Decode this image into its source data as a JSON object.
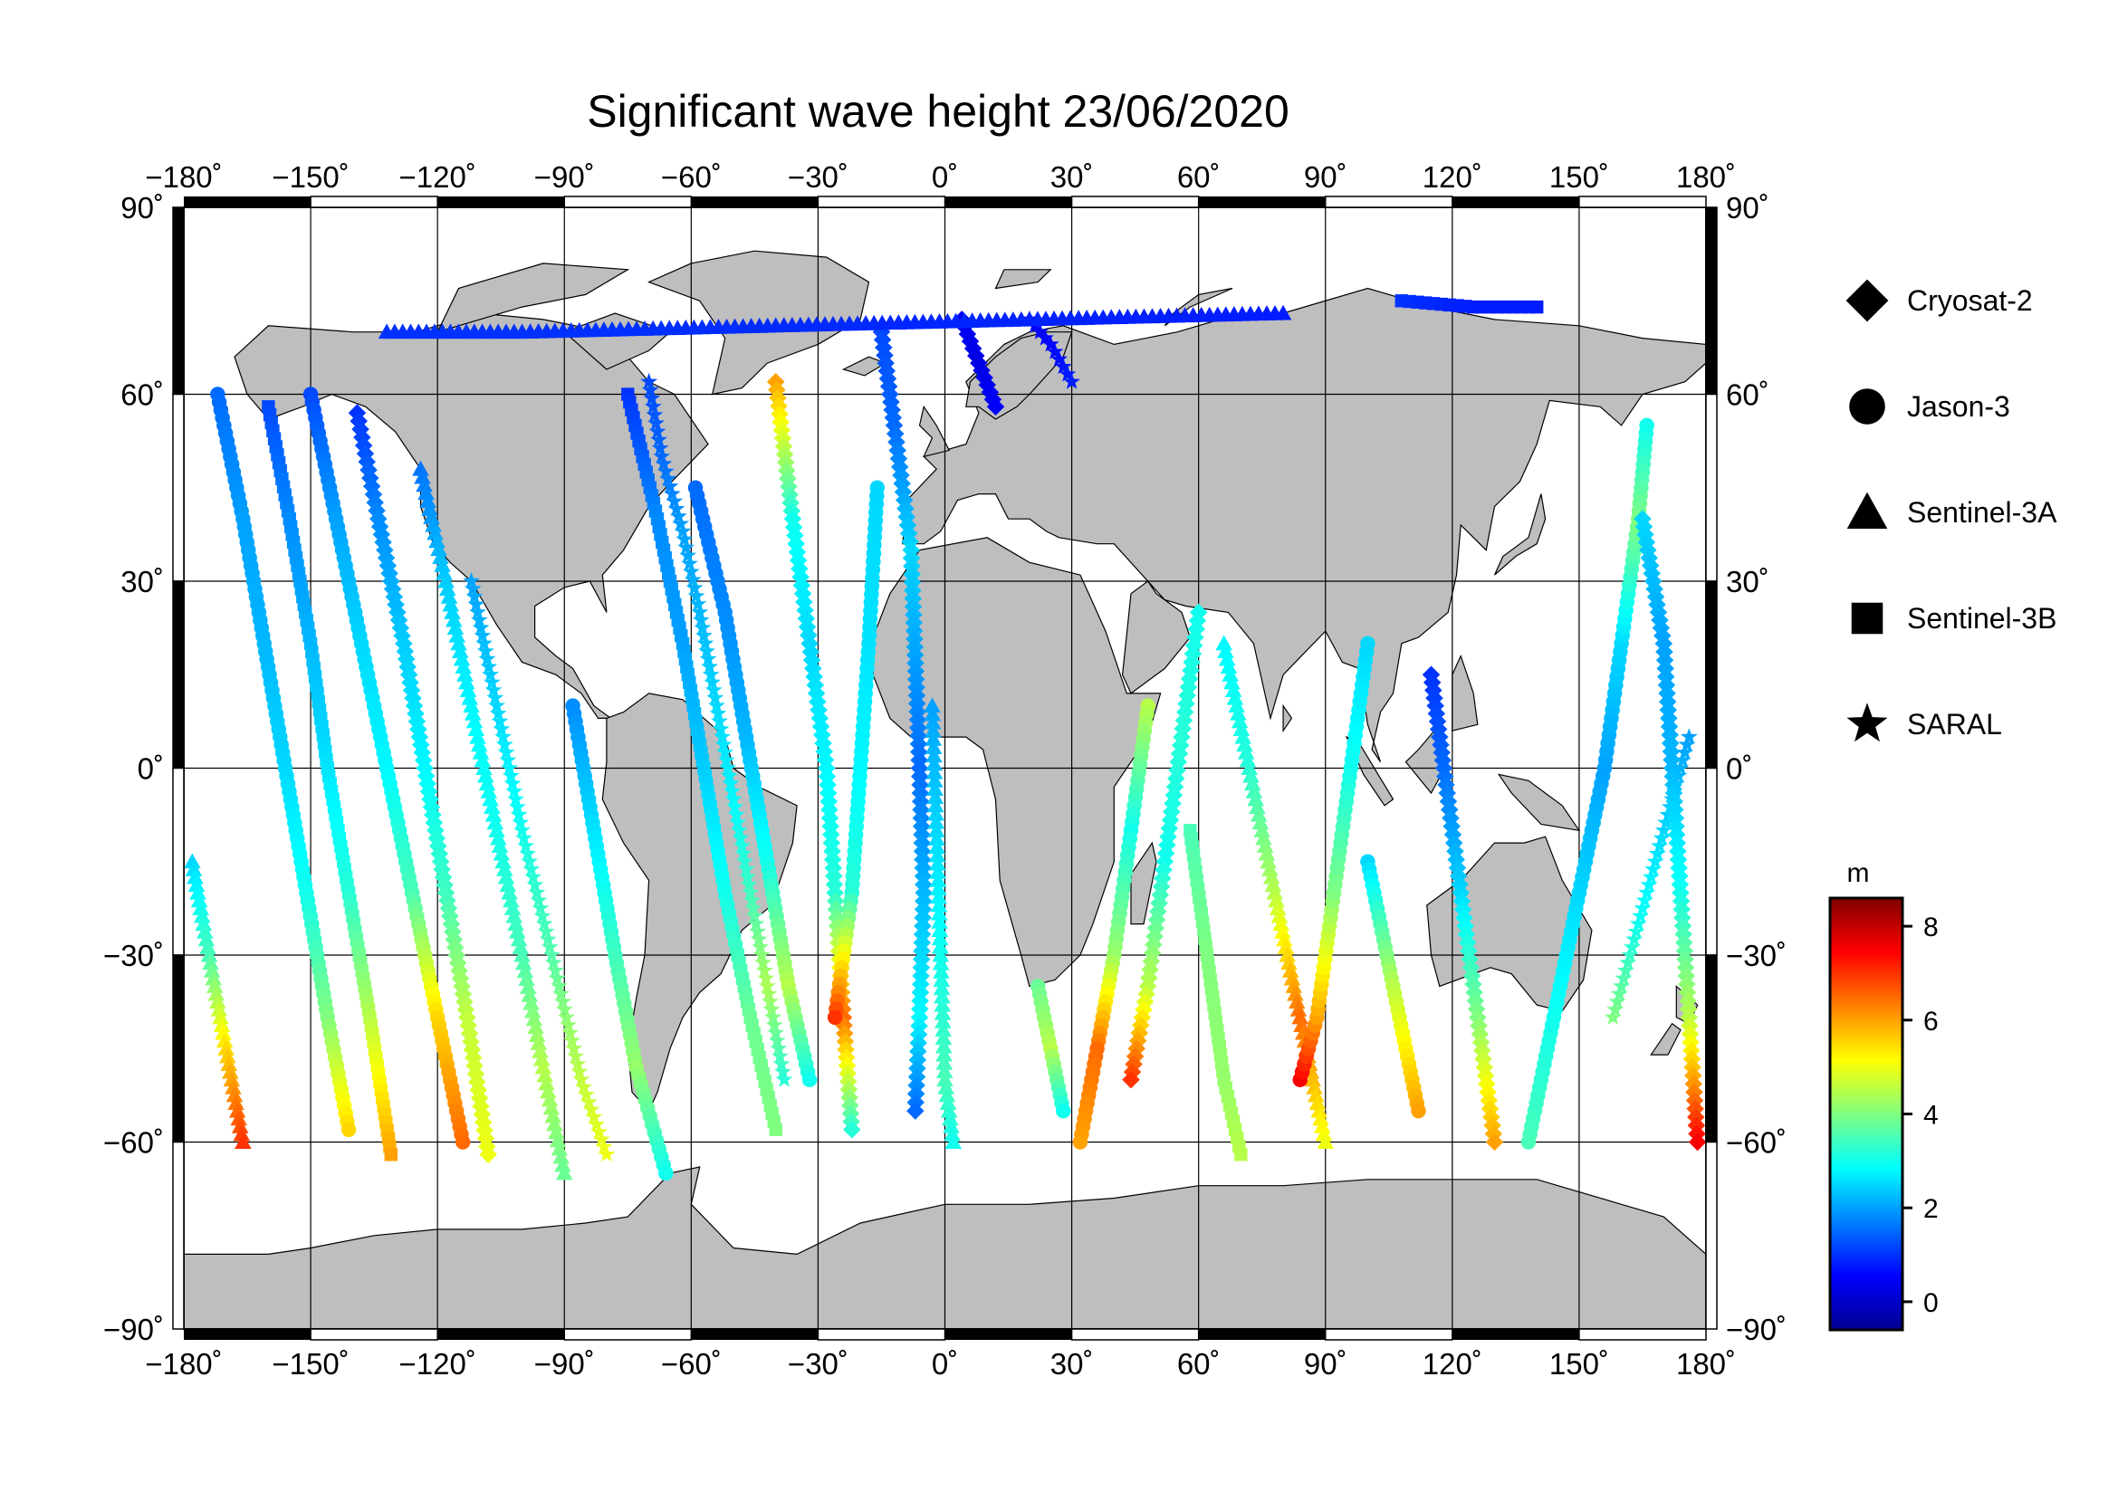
{
  "title": "Significant wave height 23/06/2020",
  "map": {
    "lon_range": [
      -180,
      180
    ],
    "lat_range": [
      -90,
      90
    ],
    "lon_ticks": [
      "−180˚",
      "−150˚",
      "−120˚",
      "−90˚",
      "−60˚",
      "−30˚",
      "0˚",
      "30˚",
      "60˚",
      "90˚",
      "120˚",
      "150˚",
      "180˚"
    ],
    "lat_ticks": [
      "90˚",
      "60˚",
      "30˚",
      "0˚",
      "−30˚",
      "−60˚",
      "−90˚"
    ],
    "grid": true,
    "land_color": "#bebebe",
    "ocean_color": "#ffffff"
  },
  "legend": {
    "placement": "right",
    "items": [
      {
        "label": "Cryosat-2",
        "marker": "diamond"
      },
      {
        "label": "Jason-3",
        "marker": "circle"
      },
      {
        "label": "Sentinel-3A",
        "marker": "triangle"
      },
      {
        "label": "Sentinel-3B",
        "marker": "square"
      },
      {
        "label": "SARAL",
        "marker": "star"
      }
    ]
  },
  "colorbar": {
    "unit": "m",
    "range": [
      -0.6,
      8.6
    ],
    "ticks": [
      "8",
      "6",
      "4",
      "2",
      "0"
    ],
    "colormap": "jet"
  },
  "chart_data": {
    "type": "scatter",
    "title": "Significant wave height 23/06/2020",
    "x_axis": "longitude",
    "y_axis": "latitude",
    "xlim": [
      -180,
      180
    ],
    "ylim": [
      -90,
      90
    ],
    "value_unit": "m",
    "tracks": [
      {
        "series": "Sentinel-3A",
        "points": [
          [
            -178,
            -15,
            2.5
          ],
          [
            -174,
            -30,
            3.5
          ],
          [
            -170,
            -45,
            5.5
          ],
          [
            -166,
            -60,
            7
          ]
        ]
      },
      {
        "series": "Jason-3",
        "points": [
          [
            -172,
            60,
            1.5
          ],
          [
            -166,
            40,
            2
          ],
          [
            -161,
            20,
            2.2
          ],
          [
            -156,
            0,
            2.5
          ],
          [
            -151,
            -20,
            3
          ],
          [
            -146,
            -40,
            4
          ],
          [
            -141,
            -58,
            5.5
          ]
        ]
      },
      {
        "series": "Sentinel-3B",
        "points": [
          [
            -160,
            58,
            1.2
          ],
          [
            -155,
            40,
            1.8
          ],
          [
            -150,
            20,
            2.2
          ],
          [
            -146,
            0,
            2.6
          ],
          [
            -141,
            -20,
            3.2
          ],
          [
            -136,
            -40,
            4.5
          ],
          [
            -131,
            -62,
            6
          ]
        ]
      },
      {
        "series": "Jason-3",
        "points": [
          [
            -150,
            60,
            1.2
          ],
          [
            -144,
            40,
            2
          ],
          [
            -138,
            20,
            2.5
          ],
          [
            -132,
            0,
            2.8
          ],
          [
            -126,
            -20,
            3.5
          ],
          [
            -120,
            -40,
            5.5
          ],
          [
            -114,
            -60,
            6.5
          ]
        ]
      },
      {
        "series": "Cryosat-2",
        "points": [
          [
            -139,
            57,
            1
          ],
          [
            -134,
            40,
            1.8
          ],
          [
            -128,
            20,
            2.4
          ],
          [
            -123,
            0,
            2.8
          ],
          [
            -118,
            -20,
            3.4
          ],
          [
            -113,
            -40,
            4.6
          ],
          [
            -108,
            -62,
            5
          ]
        ]
      },
      {
        "series": "Sentinel-3A",
        "points": [
          [
            -124,
            48,
            1.6
          ],
          [
            -118,
            30,
            2.4
          ],
          [
            -112,
            10,
            2.8
          ],
          [
            -106,
            -10,
            3
          ],
          [
            -100,
            -30,
            3.5
          ],
          [
            -95,
            -48,
            4.5
          ],
          [
            -90,
            -65,
            3.8
          ]
        ]
      },
      {
        "series": "SARAL",
        "points": [
          [
            -112,
            30,
            2
          ],
          [
            -106,
            10,
            2.5
          ],
          [
            -100,
            -10,
            3
          ],
          [
            -93,
            -30,
            3.6
          ],
          [
            -86,
            -50,
            4.6
          ],
          [
            -80,
            -62,
            5
          ]
        ]
      },
      {
        "series": "Jason-3",
        "points": [
          [
            -88,
            10,
            1.8
          ],
          [
            -83,
            -10,
            2.6
          ],
          [
            -78,
            -30,
            3.4
          ],
          [
            -73,
            -48,
            4.2
          ],
          [
            -66,
            -65,
            3
          ]
        ]
      },
      {
        "series": "Sentinel-3B",
        "points": [
          [
            -75,
            60,
            1
          ],
          [
            -68,
            40,
            1.8
          ],
          [
            -62,
            20,
            2
          ],
          [
            -57,
            0,
            2.4
          ],
          [
            -52,
            -20,
            3
          ],
          [
            -46,
            -40,
            3.8
          ],
          [
            -40,
            -58,
            4
          ]
        ]
      },
      {
        "series": "Jason-3",
        "points": [
          [
            -59,
            45,
            1.5
          ],
          [
            -52,
            25,
            1.8
          ],
          [
            -47,
            5,
            2.2
          ],
          [
            -42,
            -15,
            3
          ],
          [
            -37,
            -35,
            4.5
          ],
          [
            -32,
            -50,
            3
          ]
        ]
      },
      {
        "series": "Cryosat-2",
        "points": [
          [
            -40,
            62,
            6
          ],
          [
            -36,
            40,
            3
          ],
          [
            -32,
            20,
            2.5
          ],
          [
            -28,
            0,
            2.8
          ],
          [
            -26,
            -20,
            3.2
          ],
          [
            -24,
            -40,
            6.5
          ],
          [
            -22,
            -58,
            3.2
          ]
        ]
      },
      {
        "series": "Jason-3",
        "points": [
          [
            -16,
            45,
            2.5
          ],
          [
            -18,
            20,
            2.6
          ],
          [
            -20,
            0,
            2.8
          ],
          [
            -22,
            -20,
            3.2
          ],
          [
            -26,
            -40,
            7
          ]
        ]
      },
      {
        "series": "Cryosat-2",
        "points": [
          [
            -15,
            70,
            1.2
          ],
          [
            -12,
            55,
            1.5
          ],
          [
            -8,
            35,
            2.5
          ],
          [
            -6,
            0,
            1.5
          ],
          [
            -5,
            -20,
            2.2
          ],
          [
            -6,
            -40,
            2.8
          ],
          [
            -7,
            -55,
            1.5
          ]
        ]
      },
      {
        "series": "Sentinel-3A",
        "points": [
          [
            -3,
            10,
            2
          ],
          [
            -2,
            -10,
            2.5
          ],
          [
            -1,
            -30,
            3
          ],
          [
            0,
            -50,
            3.5
          ],
          [
            2,
            -60,
            3
          ]
        ]
      },
      {
        "series": "Cryosat-2",
        "points": [
          [
            4,
            72,
            0.5
          ],
          [
            8,
            65,
            0.3
          ],
          [
            12,
            58,
            0.5
          ]
        ]
      },
      {
        "series": "SARAL",
        "points": [
          [
            20,
            72,
            0.5
          ],
          [
            25,
            68,
            0.6
          ],
          [
            30,
            62,
            0.8
          ]
        ]
      },
      {
        "series": "Jason-3",
        "points": [
          [
            22,
            -35,
            3.8
          ],
          [
            25,
            -45,
            4.5
          ],
          [
            28,
            -55,
            3
          ]
        ]
      },
      {
        "series": "Jason-3",
        "points": [
          [
            48,
            10,
            4.5
          ],
          [
            44,
            -10,
            3
          ],
          [
            40,
            -30,
            4.2
          ],
          [
            36,
            -45,
            6.5
          ],
          [
            32,
            -60,
            6
          ]
        ]
      },
      {
        "series": "Cryosat-2",
        "points": [
          [
            60,
            25,
            3
          ],
          [
            56,
            5,
            3.2
          ],
          [
            52,
            -15,
            3
          ],
          [
            48,
            -35,
            4.5
          ],
          [
            44,
            -50,
            7
          ]
        ]
      },
      {
        "series": "Sentinel-3A",
        "points": [
          [
            66,
            20,
            2.8
          ],
          [
            72,
            0,
            3.2
          ],
          [
            78,
            -20,
            4.5
          ],
          [
            84,
            -40,
            6.5
          ],
          [
            90,
            -60,
            5
          ]
        ]
      },
      {
        "series": "Jason-3",
        "points": [
          [
            84,
            -50,
            7.5
          ],
          [
            88,
            -40,
            6
          ],
          [
            92,
            -20,
            4
          ],
          [
            96,
            0,
            3
          ],
          [
            100,
            20,
            2.5
          ]
        ]
      },
      {
        "series": "Sentinel-3B",
        "points": [
          [
            58,
            -10,
            3.5
          ],
          [
            62,
            -30,
            4
          ],
          [
            66,
            -50,
            4.2
          ],
          [
            70,
            -62,
            4.5
          ]
        ]
      },
      {
        "series": "Jason-3",
        "points": [
          [
            100,
            -15,
            2.5
          ],
          [
            106,
            -35,
            4.5
          ],
          [
            112,
            -55,
            6
          ]
        ]
      },
      {
        "series": "Cryosat-2",
        "points": [
          [
            115,
            15,
            1
          ],
          [
            118,
            0,
            1.5
          ],
          [
            122,
            -20,
            2.5
          ],
          [
            126,
            -40,
            4
          ],
          [
            130,
            -60,
            6
          ]
        ]
      },
      {
        "series": "Jason-3",
        "points": [
          [
            138,
            -60,
            3.5
          ],
          [
            144,
            -40,
            3
          ],
          [
            150,
            -20,
            2.5
          ],
          [
            156,
            0,
            2
          ],
          [
            160,
            20,
            2.5
          ],
          [
            164,
            40,
            4
          ],
          [
            166,
            55,
            3
          ]
        ]
      },
      {
        "series": "SARAL",
        "points": [
          [
            158,
            -40,
            4
          ],
          [
            164,
            -25,
            3
          ],
          [
            170,
            -10,
            2.5
          ],
          [
            176,
            5,
            2
          ]
        ]
      },
      {
        "series": "Cryosat-2",
        "points": [
          [
            165,
            40,
            2.5
          ],
          [
            170,
            20,
            2
          ],
          [
            172,
            0,
            2.2
          ],
          [
            174,
            -20,
            3
          ],
          [
            176,
            -40,
            4.5
          ],
          [
            178,
            -60,
            7.5
          ]
        ]
      },
      {
        "series": "Sentinel-3B",
        "points": [
          [
            108,
            75,
            1
          ],
          [
            125,
            74,
            0.8
          ],
          [
            140,
            74,
            0.8
          ]
        ]
      },
      {
        "series": "Sentinel-3A",
        "points": [
          [
            -132,
            70,
            1
          ],
          [
            -100,
            70,
            1
          ],
          [
            80,
            73,
            0.8
          ]
        ]
      },
      {
        "series": "SARAL",
        "points": [
          [
            -70,
            62,
            1.2
          ],
          [
            -67,
            50,
            1.5
          ],
          [
            -62,
            38,
            2
          ],
          [
            -58,
            25,
            2.2
          ],
          [
            -54,
            10,
            2.5
          ],
          [
            -50,
            -5,
            2.8
          ],
          [
            -46,
            -20,
            3.4
          ],
          [
            -42,
            -35,
            4.4
          ],
          [
            -38,
            -50,
            3.2
          ]
        ]
      }
    ]
  }
}
